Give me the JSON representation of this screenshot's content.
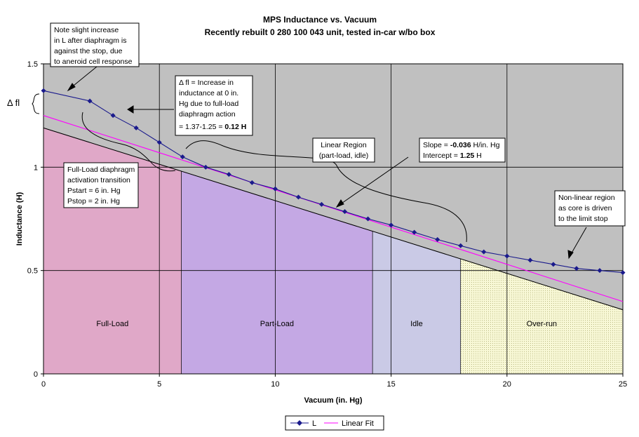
{
  "chart_data": {
    "type": "line",
    "title": "MPS Inductance vs. Vacuum",
    "subtitle": "Recently rebuilt 0 280 100 043 unit, tested in-car w/bo box",
    "xlabel": "Vacuum (in. Hg)",
    "ylabel": "Inductance (H)",
    "xlim": [
      0,
      25
    ],
    "ylim": [
      0,
      1.5
    ],
    "x_ticks": [
      "0",
      "5",
      "10",
      "15",
      "20",
      "25"
    ],
    "y_ticks": [
      "0",
      "0.5",
      "1",
      "1.5"
    ],
    "grid": true,
    "legend_position": "bottom",
    "series": [
      {
        "name": "L",
        "color": "#1a1a8c",
        "marker": "diamond",
        "x": [
          0,
          2,
          3,
          4,
          5,
          6,
          7,
          8,
          9,
          10,
          11,
          12,
          13,
          14,
          15,
          16,
          17,
          18,
          19,
          20,
          21,
          22,
          23,
          24,
          25
        ],
        "y": [
          1.37,
          1.32,
          1.25,
          1.19,
          1.12,
          1.05,
          1.0,
          0.965,
          0.925,
          0.895,
          0.855,
          0.82,
          0.785,
          0.75,
          0.72,
          0.685,
          0.65,
          0.62,
          0.59,
          0.57,
          0.55,
          0.53,
          0.51,
          0.5,
          0.49
        ]
      },
      {
        "name": "Linear Fit",
        "color": "#ff00ff",
        "slope": -0.036,
        "intercept": 1.25,
        "x": [
          0,
          25
        ],
        "y": [
          1.25,
          0.35
        ]
      }
    ],
    "regions": [
      {
        "label": "Full-Load",
        "x_start": 0,
        "x_end": 5.95,
        "color": "#e0a8c8"
      },
      {
        "label": "Part-Load",
        "x_start": 5.95,
        "x_end": 14.2,
        "color": "#c4a8e4"
      },
      {
        "label": "Idle",
        "x_start": 14.2,
        "x_end": 18,
        "color": "#cacae6"
      },
      {
        "label": "Over-run",
        "x_start": 18,
        "x_end": 25,
        "color": "#f6f6d0"
      }
    ],
    "boundary_line": {
      "x": [
        0,
        25
      ],
      "y": [
        1.19,
        0.31
      ]
    },
    "plot_background": "#c0c0c0",
    "annotations": [
      {
        "text": [
          "Note slight increase",
          "in L after diaphragm is",
          "against the stop, due",
          "to aneroid cell response"
        ]
      },
      {
        "text": [
          "Δ fl = Increase in",
          "inductance at 0 in.",
          "Hg due to full-load",
          "diaphragm action"
        ],
        "last_line_prefix": "= 1.37-1.25 = ",
        "last_line_bold": "0.12 H"
      },
      {
        "text": [
          "Linear Region",
          "(part-load, idle)"
        ]
      },
      {
        "slope_prefix": "Slope = ",
        "slope_bold": "-0.036",
        "slope_suffix": " H/in. Hg",
        "intercept_prefix": "Intercept = ",
        "intercept_bold": "1.25",
        "intercept_suffix": " H"
      },
      {
        "text": [
          "Full-Load diaphragm",
          "activation transition",
          "Pstart = 6 in. Hg",
          "Pstop = 2 in. Hg"
        ]
      },
      {
        "text": [
          "Non-linear region",
          "as core is driven",
          "to the limit stop"
        ]
      }
    ],
    "delta_label": "Δ fl"
  }
}
